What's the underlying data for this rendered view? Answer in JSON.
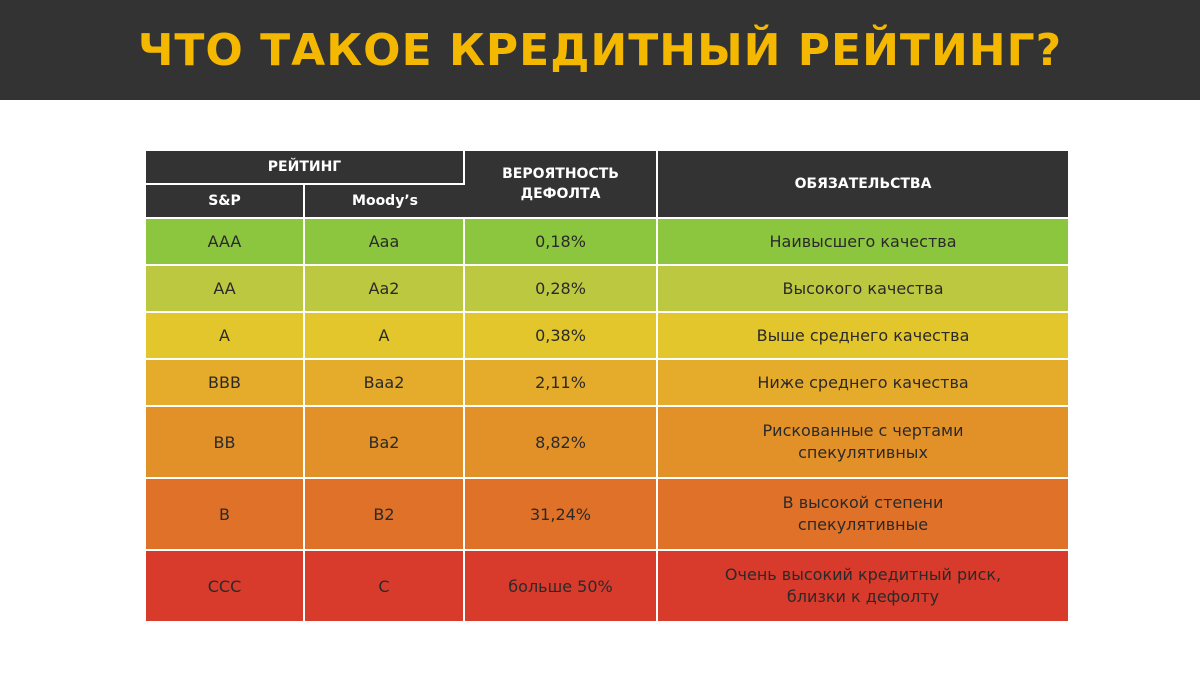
{
  "header": {
    "title": "ЧТО ТАКОЕ КРЕДИТНЫЙ РЕЙТИНГ?"
  },
  "table": {
    "headers": {
      "rating": "РЕЙТИНГ",
      "sp": "S&P",
      "moodys": "Moody’s",
      "probability_line1": "ВЕРОЯТНОСТЬ",
      "probability_line2": "ДЕФОЛТА",
      "obligations": "ОБЯЗАТЕЛЬСТВА"
    },
    "rows": [
      {
        "sp": "AAA",
        "moodys": "Aaa",
        "probability": "0,18%",
        "obligation_line1": "Наивысшего качества",
        "obligation_line2": "",
        "color": "#8cc63f"
      },
      {
        "sp": "AA",
        "moodys": "Aa2",
        "probability": "0,28%",
        "obligation_line1": "Высокого качества",
        "obligation_line2": "",
        "color": "#bcc83f"
      },
      {
        "sp": "A",
        "moodys": "A",
        "probability": "0,38%",
        "obligation_line1": "Выше среднего качества",
        "obligation_line2": "",
        "color": "#e2c62c"
      },
      {
        "sp": "BBB",
        "moodys": "Baa2",
        "probability": "2,11%",
        "obligation_line1": "Ниже среднего качества",
        "obligation_line2": "",
        "color": "#e5ab2a"
      },
      {
        "sp": "BB",
        "moodys": "Ba2",
        "probability": "8,82%",
        "obligation_line1": "Рискованные с чертами",
        "obligation_line2": "спекулятивных",
        "color": "#e29128"
      },
      {
        "sp": "B",
        "moodys": "B2",
        "probability": "31,24%",
        "obligation_line1": "В высокой степени",
        "obligation_line2": "спекулятивные",
        "color": "#df7128"
      },
      {
        "sp": "CCC",
        "moodys": "C",
        "probability": "больше 50%",
        "obligation_line1": "Очень высокий кредитный риск,",
        "obligation_line2": "близки к дефолту",
        "color": "#d83a2c"
      }
    ]
  }
}
